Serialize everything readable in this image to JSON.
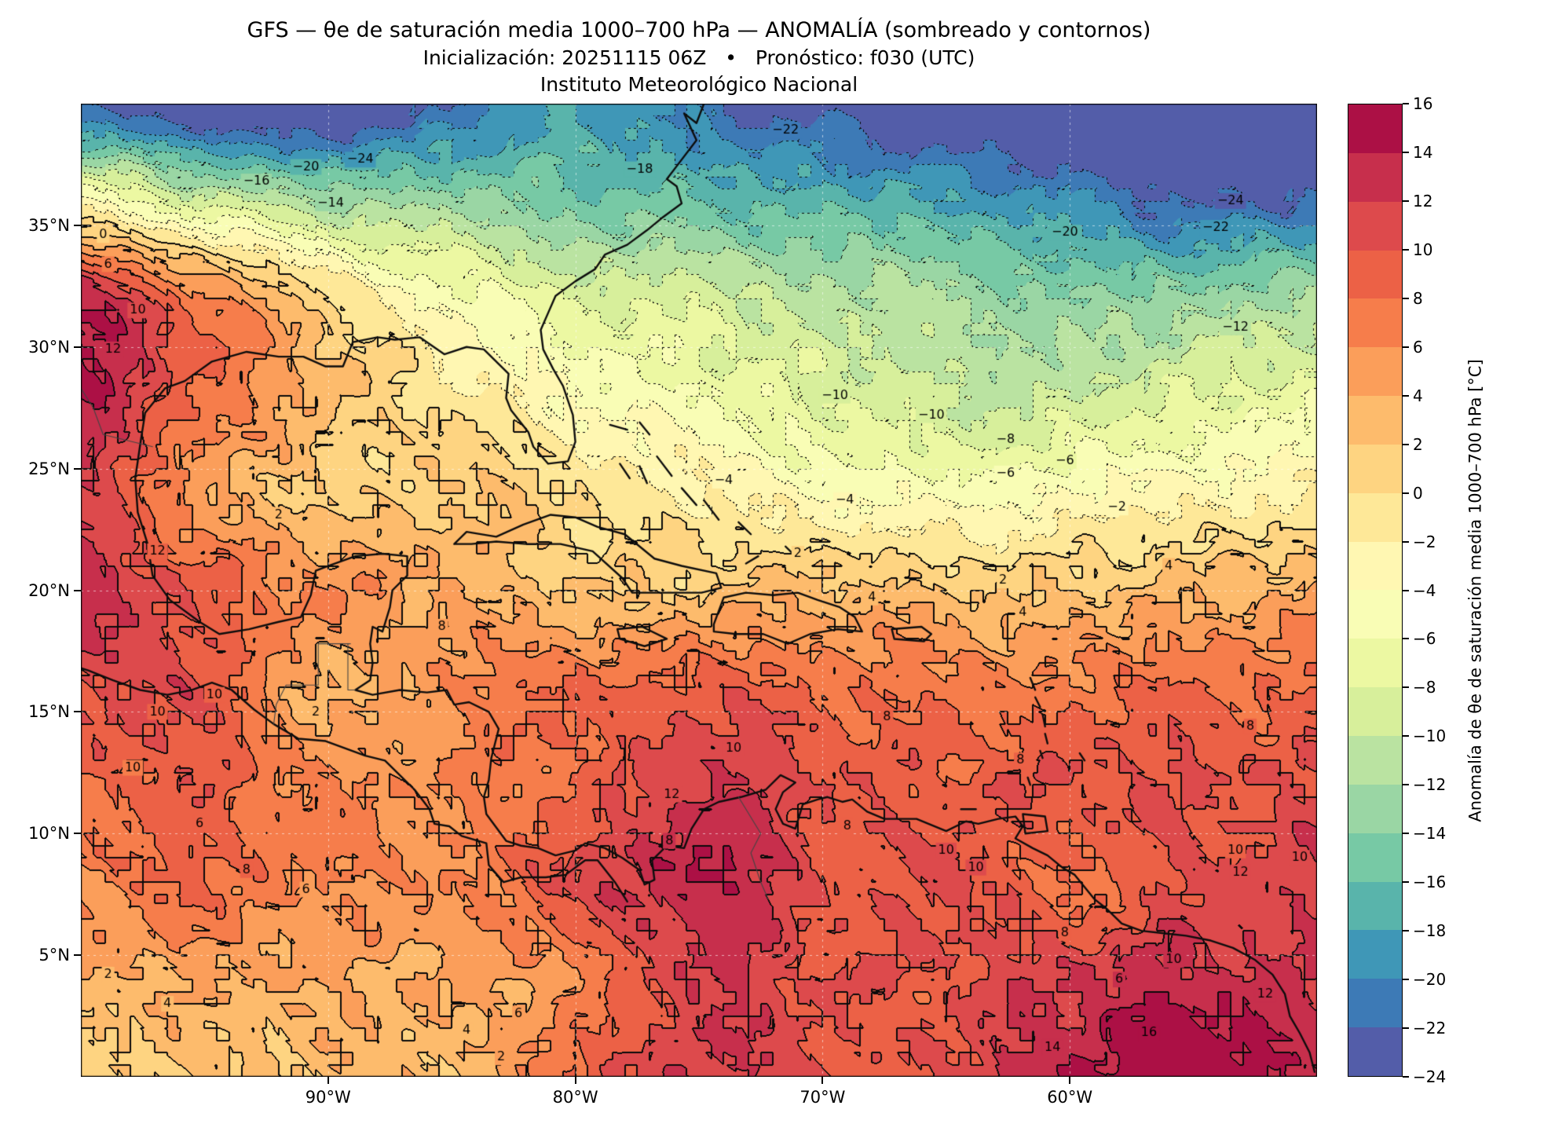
{
  "header": {
    "title": "GFS — θe de saturación media 1000–700 hPa — ANOMALÍA (sombreado y contornos)",
    "subtitle": "Inicialización: 20251115 06Z   •   Pronóstico: f030 (UTC)",
    "institute": "Instituto Meteorológico Nacional"
  },
  "chart_data": {
    "type": "heatmap",
    "subtype": "filled_contour_map",
    "title": "GFS — θe de saturación media 1000–700 hPa — ANOMALÍA (sombreado y contornos)",
    "variable": "Anomalía de θe de saturación media 1000–700 hPa",
    "units": "°C",
    "model": "GFS",
    "init": "20251115 06Z",
    "forecast": "f030 (UTC)",
    "lon_range": [
      -100,
      -50
    ],
    "lat_range": [
      0,
      40
    ],
    "levels": {
      "min": -24,
      "max": 16,
      "step": 2
    },
    "colors": [
      "#535da9",
      "#3d7ab6",
      "#3f97b7",
      "#59b4ab",
      "#77c9a5",
      "#9ad6a4",
      "#bae3a1",
      "#d7ef9b",
      "#ecf8a2",
      "#f9fdb5",
      "#fff7b2",
      "#fee898",
      "#fed481",
      "#fdbb6c",
      "#fb9e5a",
      "#f67d4b",
      "#ec6146",
      "#dd4a4c",
      "#c72f4c",
      "#ac1045"
    ],
    "grid": {
      "lons": [
        -100,
        -95,
        -90,
        -85,
        -80,
        -75,
        -70,
        -65,
        -60,
        -55,
        -50
      ],
      "lats": [
        40,
        36,
        32,
        28,
        24,
        20,
        16,
        12,
        8,
        4,
        0
      ],
      "values": [
        [
          -22,
          -25,
          -25,
          -22,
          -18,
          -21,
          -23,
          -25,
          -26,
          -26,
          -25
        ],
        [
          -4,
          -9,
          -12,
          -13,
          -15,
          -16,
          -17,
          -18,
          -20,
          -22,
          -22
        ],
        [
          13,
          7,
          0,
          -5,
          -8,
          -9,
          -11,
          -12,
          -14,
          -13,
          -12
        ],
        [
          14,
          8,
          3,
          -1,
          -4,
          -6,
          -8,
          -10,
          -10,
          -8,
          -7
        ],
        [
          11,
          5,
          1,
          2,
          0,
          -2,
          -4,
          -5,
          -4,
          -3,
          -2
        ],
        [
          13,
          9,
          6,
          4,
          2,
          2,
          3,
          2,
          2,
          3,
          4
        ],
        [
          10,
          10,
          3,
          6,
          8,
          9,
          8,
          7,
          7,
          8,
          8
        ],
        [
          8,
          9,
          6,
          6,
          8,
          12,
          10,
          9,
          10,
          10,
          10
        ],
        [
          6,
          8,
          6,
          6,
          10,
          14,
          10,
          10,
          8,
          10,
          12
        ],
        [
          4,
          4,
          4,
          4,
          6,
          12,
          10,
          10,
          12,
          13,
          12
        ],
        [
          1,
          2,
          3,
          3,
          8,
          12,
          10,
          10,
          14,
          16.5,
          14
        ]
      ]
    },
    "xticks": [
      {
        "lon": -90,
        "label": "90°W"
      },
      {
        "lon": -80,
        "label": "80°W"
      },
      {
        "lon": -70,
        "label": "70°W"
      },
      {
        "lon": -60,
        "label": "60°W"
      }
    ],
    "yticks": [
      {
        "lat": 35,
        "label": "35°N"
      },
      {
        "lat": 30,
        "label": "30°N"
      },
      {
        "lat": 25,
        "label": "25°N"
      },
      {
        "lat": 20,
        "label": "20°N"
      },
      {
        "lat": 15,
        "label": "15°N"
      },
      {
        "lat": 10,
        "label": "10°N"
      },
      {
        "lat": 5,
        "label": "5°N"
      }
    ],
    "colorbar": {
      "label": "Anomalía de θe de saturación media 1000–700 hPa [°C]",
      "ticks": [
        "16",
        "14",
        "12",
        "10",
        "8",
        "6",
        "4",
        "2",
        "0",
        "−2",
        "−4",
        "−6",
        "−8",
        "−10",
        "−12",
        "−14",
        "−16",
        "−18",
        "−20",
        "−22",
        "−24"
      ]
    },
    "contour_labels": [
      [
        -24,
        -88.7,
        37.7
      ],
      [
        -20,
        -90.9,
        37.4
      ],
      [
        -16,
        -92.9,
        36.8
      ],
      [
        -14,
        -89.9,
        35.9
      ],
      [
        -18,
        -77.4,
        37.3
      ],
      [
        -22,
        -71.5,
        38.9
      ],
      [
        -24,
        -53.5,
        36.0
      ],
      [
        -22,
        -54.1,
        34.9
      ],
      [
        -20,
        -60.2,
        34.7
      ],
      [
        -12,
        -53.3,
        30.8
      ],
      [
        0,
        -99.1,
        34.6
      ],
      [
        6,
        -98.9,
        33.4
      ],
      [
        10,
        -97.7,
        31.5
      ],
      [
        12,
        -98.7,
        29.9
      ],
      [
        -10,
        -65.6,
        27.2
      ],
      [
        -8,
        -62.6,
        26.2
      ],
      [
        -6,
        -60.2,
        25.3
      ],
      [
        -6,
        -62.6,
        24.8
      ],
      [
        -4,
        -69.1,
        23.7
      ],
      [
        -2,
        -58.1,
        23.4
      ],
      [
        -4,
        -74.0,
        24.5
      ],
      [
        -10,
        -69.5,
        28.0
      ],
      [
        2,
        -92.0,
        23.1
      ],
      [
        2,
        -62.7,
        20.4
      ],
      [
        4,
        -68.0,
        19.7
      ],
      [
        4,
        -61.9,
        19.1
      ],
      [
        8,
        -85.4,
        18.5
      ],
      [
        12,
        -96.9,
        21.6
      ],
      [
        2,
        -71.0,
        21.5
      ],
      [
        4,
        -56.0,
        21.0
      ],
      [
        10,
        -94.6,
        15.7
      ],
      [
        10,
        -96.9,
        15.0
      ],
      [
        2,
        -90.5,
        15.0
      ],
      [
        10,
        -73.6,
        13.5
      ],
      [
        8,
        -67.4,
        14.8
      ],
      [
        8,
        -52.7,
        14.4
      ],
      [
        10,
        -97.9,
        12.7
      ],
      [
        12,
        -76.1,
        11.6
      ],
      [
        8,
        -69.0,
        10.3
      ],
      [
        10,
        -65.0,
        9.3
      ],
      [
        6,
        -95.2,
        10.4
      ],
      [
        8,
        -62.0,
        13.0
      ],
      [
        8,
        -93.3,
        8.5
      ],
      [
        8,
        -76.2,
        9.7
      ],
      [
        6,
        -90.9,
        7.7
      ],
      [
        10,
        -63.8,
        8.6
      ],
      [
        10,
        -53.3,
        9.3
      ],
      [
        12,
        -53.1,
        8.4
      ],
      [
        10,
        -50.7,
        9.0
      ],
      [
        8,
        -60.2,
        5.9
      ],
      [
        10,
        -55.8,
        4.8
      ],
      [
        6,
        -58.0,
        4.0
      ],
      [
        2,
        -98.9,
        4.2
      ],
      [
        4,
        -96.5,
        3.0
      ],
      [
        6,
        -82.3,
        2.6
      ],
      [
        4,
        -84.4,
        1.9
      ],
      [
        2,
        -83.0,
        0.8
      ],
      [
        14,
        -60.7,
        1.2
      ],
      [
        16,
        -56.8,
        1.8
      ],
      [
        12,
        -52.1,
        3.4
      ]
    ],
    "coastlines": [
      [
        -74.8,
        40.0,
        -75.1,
        39.2,
        -75.6,
        39.6,
        -75.1,
        38.5,
        -76.0,
        37.3,
        -76.3,
        36.9,
        -75.9,
        36.6,
        -75.7,
        35.9,
        -76.5,
        35.3,
        -77.1,
        34.8,
        -77.9,
        34.2,
        -78.8,
        33.8,
        -79.2,
        33.2,
        -80.0,
        32.7,
        -80.8,
        32.1,
        -81.1,
        31.4,
        -81.4,
        30.7,
        -81.3,
        29.9,
        -80.9,
        29.1,
        -80.5,
        28.4,
        -80.1,
        27.2,
        -80.0,
        26.1,
        -80.3,
        25.3,
        -81.1,
        25.2,
        -81.7,
        25.9,
        -81.9,
        26.5,
        -82.6,
        27.4,
        -82.8,
        27.9,
        -82.7,
        28.9,
        -83.7,
        29.9,
        -84.4,
        30.0,
        -85.3,
        29.7,
        -86.3,
        30.4,
        -87.3,
        30.3,
        -88.0,
        30.4,
        -89.0,
        30.2,
        -89.4,
        29.2,
        -90.1,
        29.2,
        -91.0,
        29.6,
        -92.0,
        29.6,
        -93.3,
        29.8,
        -94.7,
        29.4,
        -95.8,
        28.6,
        -96.6,
        28.3,
        -97.4,
        27.3,
        -97.6,
        26.0,
        -97.8,
        24.6,
        -97.7,
        23.2,
        -97.3,
        21.9,
        -97.1,
        20.6,
        -96.4,
        19.6,
        -95.2,
        18.7,
        -94.4,
        18.2,
        -93.2,
        18.4,
        -92.0,
        18.7,
        -91.1,
        18.9,
        -90.7,
        19.8,
        -90.5,
        20.8,
        -90.0,
        21.0,
        -88.9,
        21.4,
        -87.8,
        21.5,
        -86.8,
        21.4,
        -86.8,
        20.6,
        -87.4,
        20.0,
        -87.5,
        19.3,
        -87.8,
        18.3,
        -88.2,
        18.5,
        -88.3,
        17.8,
        -88.2,
        17.0,
        -88.3,
        16.3,
        -88.9,
        15.9,
        -88.2,
        15.7,
        -87.1,
        15.9,
        -86.0,
        15.8,
        -85.2,
        15.9,
        -84.9,
        15.3,
        -84.3,
        15.4,
        -83.5,
        15.0,
        -83.1,
        14.3,
        -83.4,
        13.1,
        -83.5,
        12.2,
        -83.7,
        11.5,
        -83.6,
        10.8,
        -82.8,
        9.7,
        -82.2,
        9.5,
        -81.5,
        9.4,
        -80.8,
        9.1,
        -80.0,
        9.3,
        -79.6,
        9.6,
        -78.8,
        9.4,
        -78.1,
        9.0,
        -77.4,
        8.5,
        -77.2,
        7.9,
        -76.8,
        8.1,
        -76.9,
        8.9,
        -76.3,
        9.5,
        -75.6,
        9.4,
        -75.3,
        10.2,
        -74.8,
        11.0,
        -74.2,
        11.3,
        -73.3,
        11.5,
        -72.3,
        11.8,
        -71.7,
        12.4,
        -71.1,
        12.1,
        -71.6,
        11.7,
        -71.9,
        11.0,
        -71.6,
        10.4,
        -71.1,
        10.2,
        -70.8,
        11.2,
        -70.2,
        11.4,
        -69.8,
        11.5,
        -69.2,
        11.3,
        -68.8,
        11.4,
        -68.2,
        10.9,
        -67.5,
        10.6,
        -66.2,
        10.6,
        -65.0,
        10.1,
        -64.2,
        10.5,
        -63.7,
        10.4,
        -62.9,
        10.6,
        -62.2,
        10.7,
        -61.9,
        10.3,
        -62.2,
        9.8,
        -61.5,
        9.4,
        -60.9,
        9.1,
        -60.3,
        8.6,
        -59.8,
        8.3,
        -59.0,
        7.3,
        -58.5,
        6.9,
        -57.9,
        6.3,
        -57.1,
        6.0,
        -56.2,
        5.9,
        -55.3,
        5.8,
        -54.3,
        5.6,
        -53.4,
        5.3,
        -52.5,
        4.8,
        -51.8,
        4.2,
        -51.3,
        3.4,
        -51.1,
        2.5,
        -50.7,
        1.8,
        -50.3,
        1.0,
        -50.1,
        0.2
      ],
      [
        -77.9,
        7.2,
        -78.4,
        8.0,
        -79.1,
        8.9,
        -79.6,
        8.9,
        -80.4,
        8.3,
        -81.2,
        8.2,
        -82.2,
        8.2,
        -82.9,
        8.0,
        -83.5,
        8.7,
        -83.6,
        9.6,
        -84.6,
        9.9,
        -85.1,
        10.3,
        -85.7,
        10.4,
        -85.9,
        11.0,
        -86.5,
        11.8,
        -87.2,
        12.5,
        -87.7,
        13.0,
        -88.5,
        13.2,
        -89.3,
        13.5,
        -90.1,
        13.8,
        -91.2,
        13.9,
        -92.2,
        14.5,
        -93.0,
        15.1,
        -93.9,
        15.9,
        -94.7,
        16.2,
        -95.5,
        15.9,
        -96.5,
        15.7,
        -97.6,
        15.9,
        -98.7,
        16.3,
        -99.7,
        16.7,
        -100.0,
        16.8
      ],
      [
        -84.9,
        21.9,
        -84.4,
        22.4,
        -83.2,
        22.2,
        -82.1,
        22.7,
        -81.0,
        23.1,
        -80.0,
        23.0,
        -79.1,
        22.6,
        -78.0,
        22.3,
        -76.8,
        21.3,
        -75.7,
        21.0,
        -74.3,
        20.7,
        -74.1,
        20.1,
        -74.9,
        19.9,
        -76.3,
        19.9,
        -77.7,
        19.9,
        -78.1,
        20.5,
        -79.3,
        21.6,
        -80.6,
        21.9,
        -82.0,
        21.9,
        -83.2,
        22.0,
        -84.2,
        21.9,
        -84.9,
        21.9
      ],
      [
        -74.4,
        18.6,
        -74.0,
        19.7,
        -73.1,
        19.9,
        -72.0,
        19.8,
        -71.0,
        19.9,
        -70.2,
        19.6,
        -69.3,
        19.3,
        -68.7,
        18.9,
        -68.4,
        18.3,
        -69.4,
        18.4,
        -70.5,
        18.2,
        -71.4,
        17.8,
        -72.4,
        18.2,
        -73.5,
        18.2,
        -74.4,
        18.3,
        -74.4,
        18.6
      ],
      [
        -78.3,
        18.4,
        -77.3,
        18.5,
        -76.3,
        18.0,
        -77.2,
        17.7,
        -78.2,
        18.0,
        -78.3,
        18.4
      ],
      [
        -67.2,
        18.4,
        -66.0,
        18.5,
        -65.6,
        18.2,
        -65.9,
        17.9,
        -67.1,
        18.0,
        -67.2,
        18.4
      ],
      [
        -61.9,
        10.8,
        -61.0,
        10.7,
        -60.9,
        10.1,
        -61.8,
        10.0,
        -61.9,
        10.8
      ],
      [
        -78.2,
        25.2,
        -77.8,
        24.6
      ],
      [
        -78.6,
        26.8,
        -77.9,
        26.6
      ],
      [
        -77.4,
        26.9,
        -77.0,
        26.4
      ],
      [
        -77.4,
        25.1,
        -77.1,
        24.4
      ],
      [
        -76.7,
        25.5,
        -76.1,
        24.7
      ],
      [
        -75.7,
        24.2,
        -75.1,
        23.5
      ],
      [
        -74.8,
        23.7,
        -74.2,
        22.9
      ],
      [
        -73.4,
        22.8,
        -72.9,
        22.3
      ],
      [
        -73.1,
        21.1,
        -72.6,
        21.4
      ],
      [
        -71.5,
        21.8,
        -71.1,
        21.4
      ],
      [
        -61.6,
        16.4,
        -61.4,
        15.9
      ],
      [
        -61.4,
        15.6,
        -61.2,
        15.2
      ],
      [
        -61.1,
        14.9,
        -61.0,
        14.4
      ],
      [
        -61.0,
        14.1,
        -60.9,
        13.7
      ],
      [
        -61.2,
        13.4,
        -61.1,
        13.1
      ],
      [
        -61.7,
        12.3,
        -61.6,
        12.0
      ],
      [
        -59.6,
        13.3,
        -59.4,
        13.0
      ],
      [
        -64.4,
        11.0,
        -63.8,
        11.0
      ]
    ],
    "borders": [
      [
        -97.1,
        25.9,
        -99.1,
        26.4,
        -99.5,
        27.5,
        -100.0,
        28.3
      ],
      [
        -92.2,
        14.5,
        -92.1,
        15.3,
        -91.7,
        16.1,
        -90.4,
        16.1,
        -90.4,
        17.8,
        -89.1,
        17.8
      ],
      [
        -89.2,
        17.8,
        -89.2,
        15.9,
        -88.9,
        15.9
      ],
      [
        -73.4,
        11.5,
        -72.5,
        10.0,
        -72.9,
        9.2,
        -72.5,
        8.0,
        -72.2,
        7.3
      ]
    ],
    "grid_lines": {
      "lons": [
        -90,
        -80,
        -70,
        -60
      ],
      "lats": [
        5,
        10,
        15,
        20,
        25,
        30,
        35
      ]
    }
  }
}
